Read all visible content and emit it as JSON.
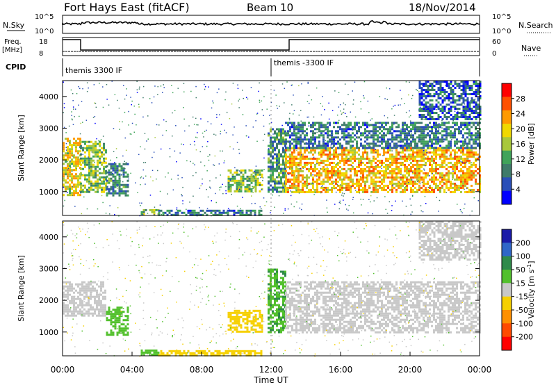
{
  "header": {
    "station": "Fort Hays East (fitACF)",
    "beam": "Beam 10",
    "date": "18/Nov/2014"
  },
  "top_panels": {
    "nsky_label": "N.Sky",
    "nsky_ticks": [
      "10^5",
      "10^0"
    ],
    "nsearch_label": "N.Search",
    "nsearch_ticks": [
      "10^5",
      "10^0"
    ],
    "freq_label": "Freq.",
    "freq_unit": "[MHz]",
    "freq_ticks": [
      "18",
      "8"
    ],
    "nave_label": "Nave",
    "nave_ticks": [
      "60",
      "0"
    ],
    "cpid_label": "CPID",
    "cpid_segments": [
      "themis 3300 IF",
      "themis -3300 IF"
    ]
  },
  "colors": {
    "power_scale": [
      "#0000ff",
      "#2a4fb8",
      "#3f7b6a",
      "#40a35a",
      "#a8c83c",
      "#f0d800",
      "#ff9a00",
      "#ff5000",
      "#ff0000"
    ],
    "velocity_scale": [
      "#1a1aa8",
      "#2f66c8",
      "#2f8a4a",
      "#52c02c",
      "#c8c8c8",
      "#f6d000",
      "#ff9000",
      "#ff4a00",
      "#ff0000"
    ]
  },
  "chart_data": [
    {
      "type": "heatmap",
      "name": "power",
      "ylabel": "Slant Range [km]",
      "yticks": [
        "1000",
        "2000",
        "3000",
        "4000"
      ],
      "ylim": [
        250,
        4500
      ],
      "xlim": [
        0,
        24
      ],
      "colorbar_label": "Power [dB]",
      "colorbar_ticks": [
        "28",
        "24",
        "20",
        "16",
        "12",
        "8",
        "4"
      ],
      "scale": [
        0,
        30
      ],
      "regions": [
        {
          "t0": 0.0,
          "t1": 1.0,
          "r0": 900,
          "r1": 2700,
          "level": 18
        },
        {
          "t0": 1.0,
          "t1": 2.5,
          "r0": 1000,
          "r1": 2600,
          "level": 14
        },
        {
          "t0": 2.5,
          "t1": 3.8,
          "r0": 900,
          "r1": 1900,
          "level": 9
        },
        {
          "t0": 4.5,
          "t1": 5.5,
          "r0": 300,
          "r1": 450,
          "level": 14
        },
        {
          "t0": 5.5,
          "t1": 11.5,
          "r0": 280,
          "r1": 430,
          "level": 8
        },
        {
          "t0": 9.5,
          "t1": 11.5,
          "r0": 1000,
          "r1": 1700,
          "level": 14
        },
        {
          "t0": 11.8,
          "t1": 12.8,
          "r0": 1000,
          "r1": 3000,
          "level": 10
        },
        {
          "t0": 12.8,
          "t1": 24.0,
          "r0": 1000,
          "r1": 2400,
          "level": 20
        },
        {
          "t0": 12.8,
          "t1": 24.0,
          "r0": 2400,
          "r1": 3200,
          "level": 8
        },
        {
          "t0": 20.5,
          "t1": 24.0,
          "r0": 3300,
          "r1": 4500,
          "level": 6
        }
      ]
    },
    {
      "type": "heatmap",
      "name": "velocity",
      "ylabel": "Slant Range [km]",
      "yticks": [
        "1000",
        "2000",
        "3000",
        "4000"
      ],
      "ylim": [
        250,
        4500
      ],
      "xlim": [
        0,
        24
      ],
      "xlabel": "Time UT",
      "xticks": [
        "00:00",
        "04:00",
        "08:00",
        "12:00",
        "16:00",
        "20:00",
        "00:00"
      ],
      "colorbar_label": "Velocity [m s",
      "colorbar_label_sup": "-1",
      "colorbar_ticks": [
        "200",
        "100",
        "50",
        "15",
        "-15",
        "-50",
        "-100",
        "-200"
      ],
      "scale": [
        -200,
        200
      ],
      "regions": [
        {
          "t0": 0.0,
          "t1": 2.5,
          "r0": 1500,
          "r1": 2600,
          "level": 0
        },
        {
          "t0": 2.5,
          "t1": 3.8,
          "r0": 900,
          "r1": 1800,
          "level": 45
        },
        {
          "t0": 4.5,
          "t1": 5.5,
          "r0": 300,
          "r1": 450,
          "level": 45
        },
        {
          "t0": 5.5,
          "t1": 11.5,
          "r0": 280,
          "r1": 430,
          "level": -40
        },
        {
          "t0": 9.5,
          "t1": 11.5,
          "r0": 1000,
          "r1": 1700,
          "level": -40
        },
        {
          "t0": 11.8,
          "t1": 12.8,
          "r0": 1000,
          "r1": 3000,
          "level": 60
        },
        {
          "t0": 12.8,
          "t1": 24.0,
          "r0": 1000,
          "r1": 2600,
          "level": 0
        },
        {
          "t0": 20.5,
          "t1": 24.0,
          "r0": 3300,
          "r1": 4500,
          "level": 0
        }
      ]
    }
  ]
}
